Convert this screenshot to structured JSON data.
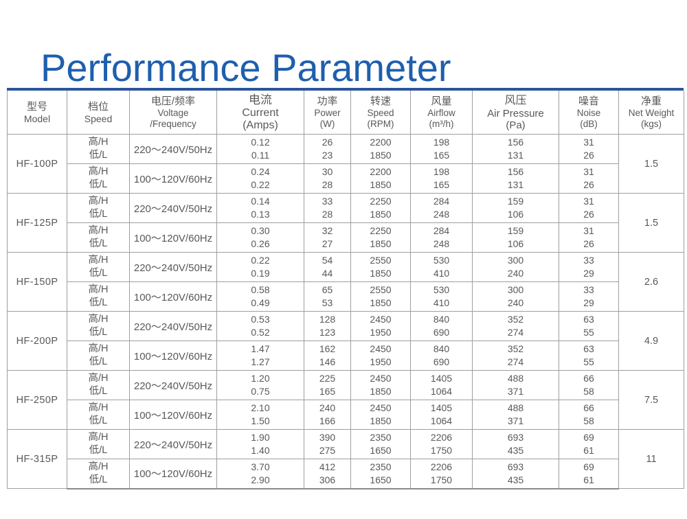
{
  "page": {
    "title": "Performance Parameter"
  },
  "colors": {
    "title": "#1e5fad",
    "top_bar": "#2a559b",
    "grid": "#9e9e9e",
    "text": "#57585a",
    "bottom_rule": "#8a8a8a"
  },
  "table": {
    "columns": [
      {
        "zh": "型号",
        "en": "Model"
      },
      {
        "zh": "档位",
        "en": "Speed"
      },
      {
        "zh": "电压/频率",
        "en": "Voltage",
        "en2": "/Frequency"
      },
      {
        "zh": "电流",
        "en": "Current",
        "en2": "(Amps)"
      },
      {
        "zh": "功率",
        "en": "Power",
        "en2": "(W)"
      },
      {
        "zh": "转速",
        "en": "Speed",
        "en2": "(RPM)"
      },
      {
        "zh": "风量",
        "en": "Airflow",
        "en2": "(m³/h)"
      },
      {
        "zh": "风压",
        "en": "Air Pressure",
        "en2": "(Pa)"
      },
      {
        "zh": "噪音",
        "en": "Noise",
        "en2": "(dB)"
      },
      {
        "zh": "净重",
        "en": "Net Weight",
        "en2": "(kgs)"
      }
    ],
    "speed_labels": {
      "high": "高/H",
      "low": "低/L"
    },
    "models": [
      {
        "model": "HF-100P",
        "net_weight": "1.5",
        "rows": [
          {
            "voltage": "220～240V/50Hz",
            "current": [
              "0.12",
              "0.11"
            ],
            "power": [
              "26",
              "23"
            ],
            "rpm": [
              "2200",
              "1850"
            ],
            "airflow": [
              "198",
              "165"
            ],
            "pressure": [
              "156",
              "131"
            ],
            "noise": [
              "31",
              "26"
            ]
          },
          {
            "voltage": "100～120V/60Hz",
            "current": [
              "0.24",
              "0.22"
            ],
            "power": [
              "30",
              "28"
            ],
            "rpm": [
              "2200",
              "1850"
            ],
            "airflow": [
              "198",
              "165"
            ],
            "pressure": [
              "156",
              "131"
            ],
            "noise": [
              "31",
              "26"
            ]
          }
        ]
      },
      {
        "model": "HF-125P",
        "net_weight": "1.5",
        "rows": [
          {
            "voltage": "220～240V/50Hz",
            "current": [
              "0.14",
              "0.13"
            ],
            "power": [
              "33",
              "28"
            ],
            "rpm": [
              "2250",
              "1850"
            ],
            "airflow": [
              "284",
              "248"
            ],
            "pressure": [
              "159",
              "106"
            ],
            "noise": [
              "31",
              "26"
            ]
          },
          {
            "voltage": "100～120V/60Hz",
            "current": [
              "0.30",
              "0.26"
            ],
            "power": [
              "32",
              "27"
            ],
            "rpm": [
              "2250",
              "1850"
            ],
            "airflow": [
              "284",
              "248"
            ],
            "pressure": [
              "159",
              "106"
            ],
            "noise": [
              "31",
              "26"
            ]
          }
        ]
      },
      {
        "model": "HF-150P",
        "net_weight": "2.6",
        "rows": [
          {
            "voltage": "220～240V/50Hz",
            "current": [
              "0.22",
              "0.19"
            ],
            "power": [
              "54",
              "44"
            ],
            "rpm": [
              "2550",
              "1850"
            ],
            "airflow": [
              "530",
              "410"
            ],
            "pressure": [
              "300",
              "240"
            ],
            "noise": [
              "33",
              "29"
            ]
          },
          {
            "voltage": "100～120V/60Hz",
            "current": [
              "0.58",
              "0.49"
            ],
            "power": [
              "65",
              "53"
            ],
            "rpm": [
              "2550",
              "1850"
            ],
            "airflow": [
              "530",
              "410"
            ],
            "pressure": [
              "300",
              "240"
            ],
            "noise": [
              "33",
              "29"
            ]
          }
        ]
      },
      {
        "model": "HF-200P",
        "net_weight": "4.9",
        "rows": [
          {
            "voltage": "220～240V/50Hz",
            "current": [
              "0.53",
              "0.52"
            ],
            "power": [
              "128",
              "123"
            ],
            "rpm": [
              "2450",
              "1950"
            ],
            "airflow": [
              "840",
              "690"
            ],
            "pressure": [
              "352",
              "274"
            ],
            "noise": [
              "63",
              "55"
            ]
          },
          {
            "voltage": "100～120V/60Hz",
            "current": [
              "1.47",
              "1.27"
            ],
            "power": [
              "162",
              "146"
            ],
            "rpm": [
              "2450",
              "1950"
            ],
            "airflow": [
              "840",
              "690"
            ],
            "pressure": [
              "352",
              "274"
            ],
            "noise": [
              "63",
              "55"
            ]
          }
        ]
      },
      {
        "model": "HF-250P",
        "net_weight": "7.5",
        "rows": [
          {
            "voltage": "220～240V/50Hz",
            "current": [
              "1.20",
              "0.75"
            ],
            "power": [
              "225",
              "165"
            ],
            "rpm": [
              "2450",
              "1850"
            ],
            "airflow": [
              "1405",
              "1064"
            ],
            "pressure": [
              "488",
              "371"
            ],
            "noise": [
              "66",
              "58"
            ]
          },
          {
            "voltage": "100～120V/60Hz",
            "current": [
              "2.10",
              "1.50"
            ],
            "power": [
              "240",
              "166"
            ],
            "rpm": [
              "2450",
              "1850"
            ],
            "airflow": [
              "1405",
              "1064"
            ],
            "pressure": [
              "488",
              "371"
            ],
            "noise": [
              "66",
              "58"
            ]
          }
        ]
      },
      {
        "model": "HF-315P",
        "net_weight": "11",
        "rows": [
          {
            "voltage": "220～240V/50Hz",
            "current": [
              "1.90",
              "1.40"
            ],
            "power": [
              "390",
              "275"
            ],
            "rpm": [
              "2350",
              "1650"
            ],
            "airflow": [
              "2206",
              "1750"
            ],
            "pressure": [
              "693",
              "435"
            ],
            "noise": [
              "69",
              "61"
            ]
          },
          {
            "voltage": "100～120V/60Hz",
            "current": [
              "3.70",
              "2.90"
            ],
            "power": [
              "412",
              "306"
            ],
            "rpm": [
              "2350",
              "1650"
            ],
            "airflow": [
              "2206",
              "1750"
            ],
            "pressure": [
              "693",
              "435"
            ],
            "noise": [
              "69",
              "61"
            ]
          }
        ]
      }
    ]
  }
}
